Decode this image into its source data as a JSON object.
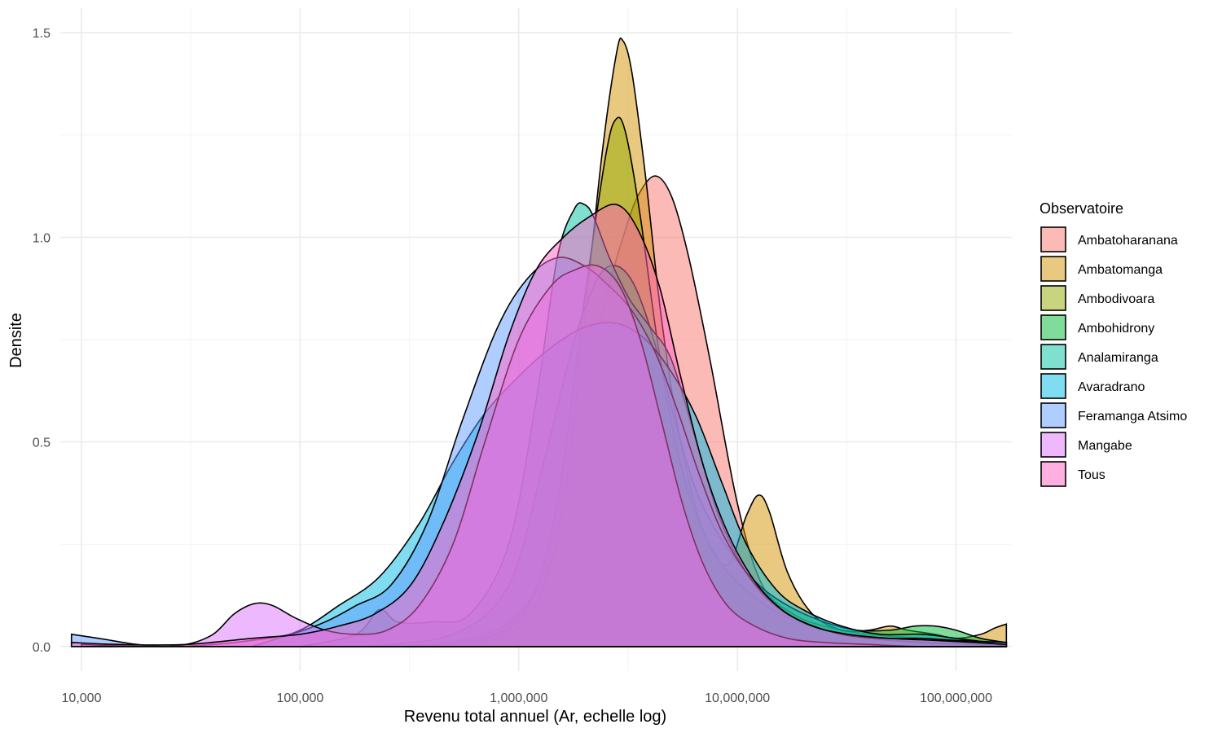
{
  "chart_data": {
    "type": "area",
    "title": "",
    "xlabel": "Revenu total annuel (Ar, echelle log)",
    "ylabel": "Densite",
    "x_scale": "log10",
    "xlim": [
      8000,
      180000000
    ],
    "ylim": [
      -0.06,
      1.56
    ],
    "x_ticks": [
      10000,
      100000,
      1000000,
      10000000,
      100000000
    ],
    "x_tick_labels": [
      "10,000",
      "100,000",
      "1,000,000",
      "10,000,000",
      "100,000,000"
    ],
    "y_ticks": [
      0,
      0.5,
      1,
      1.5
    ],
    "y_tick_labels": [
      "0.0",
      "0.5",
      "1.0",
      "1.5"
    ],
    "grid": true,
    "legend": {
      "title": "Observatoire",
      "position": "right"
    },
    "series": [
      {
        "name": "Ambatoharanana",
        "color": "#F8766D",
        "points": [
          [
            300000,
            0
          ],
          [
            600000,
            0.02
          ],
          [
            1000000,
            0.08
          ],
          [
            1500000,
            0.25
          ],
          [
            2000000,
            0.6
          ],
          [
            2500000,
            0.85
          ],
          [
            3000000,
            1.0
          ],
          [
            3500000,
            1.1
          ],
          [
            4200000,
            1.15
          ],
          [
            5000000,
            1.1
          ],
          [
            6000000,
            0.95
          ],
          [
            7500000,
            0.7
          ],
          [
            10000000,
            0.35
          ],
          [
            13000000,
            0.15
          ],
          [
            18000000,
            0.08
          ],
          [
            25000000,
            0.05
          ],
          [
            40000000,
            0.03
          ],
          [
            70000000,
            0.02
          ],
          [
            120000000,
            0.01
          ],
          [
            170000000,
            0
          ]
        ]
      },
      {
        "name": "Ambatomanga",
        "color": "#D39200",
        "points": [
          [
            400000,
            0
          ],
          [
            800000,
            0.02
          ],
          [
            1200000,
            0.1
          ],
          [
            1600000,
            0.35
          ],
          [
            2000000,
            0.8
          ],
          [
            2400000,
            1.2
          ],
          [
            2800000,
            1.45
          ],
          [
            3000000,
            1.48
          ],
          [
            3300000,
            1.4
          ],
          [
            3800000,
            1.15
          ],
          [
            4500000,
            0.8
          ],
          [
            5500000,
            0.5
          ],
          [
            7000000,
            0.28
          ],
          [
            9000000,
            0.2
          ],
          [
            11000000,
            0.32
          ],
          [
            12500000,
            0.37
          ],
          [
            14000000,
            0.33
          ],
          [
            17000000,
            0.18
          ],
          [
            22000000,
            0.08
          ],
          [
            30000000,
            0.04
          ],
          [
            40000000,
            0.04
          ],
          [
            50000000,
            0.05
          ],
          [
            60000000,
            0.04
          ],
          [
            80000000,
            0.03
          ],
          [
            100000000,
            0.02
          ],
          [
            130000000,
            0.03
          ],
          [
            150000000,
            0.045
          ],
          [
            170000000,
            0.055
          ]
        ]
      },
      {
        "name": "Ambodivoara",
        "color": "#93AA00",
        "points": [
          [
            300000,
            0
          ],
          [
            700000,
            0.02
          ],
          [
            1100000,
            0.1
          ],
          [
            1500000,
            0.35
          ],
          [
            2000000,
            0.85
          ],
          [
            2500000,
            1.2
          ],
          [
            2800000,
            1.29
          ],
          [
            3100000,
            1.25
          ],
          [
            3600000,
            1.05
          ],
          [
            4300000,
            0.75
          ],
          [
            5200000,
            0.5
          ],
          [
            6500000,
            0.32
          ],
          [
            8500000,
            0.2
          ],
          [
            12000000,
            0.12
          ],
          [
            17000000,
            0.07
          ],
          [
            25000000,
            0.04
          ],
          [
            40000000,
            0.02
          ],
          [
            70000000,
            0.01
          ],
          [
            120000000,
            0.005
          ],
          [
            170000000,
            0
          ]
        ]
      },
      {
        "name": "Ambohidrony",
        "color": "#00BA38",
        "points": [
          [
            200000,
            0
          ],
          [
            500000,
            0.03
          ],
          [
            900000,
            0.15
          ],
          [
            1300000,
            0.45
          ],
          [
            1800000,
            0.75
          ],
          [
            2300000,
            0.9
          ],
          [
            2800000,
            0.93
          ],
          [
            3400000,
            0.88
          ],
          [
            4200000,
            0.74
          ],
          [
            5200000,
            0.55
          ],
          [
            6500000,
            0.38
          ],
          [
            8500000,
            0.26
          ],
          [
            12000000,
            0.16
          ],
          [
            17000000,
            0.1
          ],
          [
            25000000,
            0.06
          ],
          [
            35000000,
            0.04
          ],
          [
            50000000,
            0.04
          ],
          [
            65000000,
            0.05
          ],
          [
            80000000,
            0.05
          ],
          [
            100000000,
            0.04
          ],
          [
            130000000,
            0.02
          ],
          [
            170000000,
            0.01
          ]
        ]
      },
      {
        "name": "Analamiranga",
        "color": "#00C19F",
        "points": [
          [
            100000,
            0
          ],
          [
            180000,
            0.03
          ],
          [
            230000,
            0.09
          ],
          [
            280000,
            0.06
          ],
          [
            400000,
            0.06
          ],
          [
            600000,
            0.08
          ],
          [
            900000,
            0.25
          ],
          [
            1200000,
            0.6
          ],
          [
            1500000,
            0.95
          ],
          [
            1800000,
            1.07
          ],
          [
            2000000,
            1.08
          ],
          [
            2200000,
            1.05
          ],
          [
            2600000,
            0.95
          ],
          [
            3200000,
            0.85
          ],
          [
            4000000,
            0.78
          ],
          [
            5000000,
            0.7
          ],
          [
            6500000,
            0.5
          ],
          [
            8500000,
            0.3
          ],
          [
            12000000,
            0.15
          ],
          [
            17000000,
            0.08
          ],
          [
            25000000,
            0.04
          ],
          [
            40000000,
            0.02
          ],
          [
            70000000,
            0.01
          ],
          [
            120000000,
            0.005
          ],
          [
            170000000,
            0
          ]
        ]
      },
      {
        "name": "Avaradrano",
        "color": "#00B9E3",
        "points": [
          [
            60000,
            0
          ],
          [
            100000,
            0.04
          ],
          [
            150000,
            0.1
          ],
          [
            230000,
            0.17
          ],
          [
            350000,
            0.3
          ],
          [
            500000,
            0.45
          ],
          [
            700000,
            0.57
          ],
          [
            1000000,
            0.66
          ],
          [
            1400000,
            0.73
          ],
          [
            2000000,
            0.78
          ],
          [
            2800000,
            0.79
          ],
          [
            3800000,
            0.75
          ],
          [
            5000000,
            0.67
          ],
          [
            6500000,
            0.56
          ],
          [
            8500000,
            0.4
          ],
          [
            11000000,
            0.25
          ],
          [
            15000000,
            0.14
          ],
          [
            20000000,
            0.09
          ],
          [
            30000000,
            0.05
          ],
          [
            45000000,
            0.03
          ],
          [
            70000000,
            0.03
          ],
          [
            100000000,
            0.02
          ],
          [
            140000000,
            0.01
          ],
          [
            170000000,
            0
          ]
        ]
      },
      {
        "name": "Feramanga Atsimo",
        "color": "#619CFF",
        "points": [
          [
            9000,
            0.03
          ],
          [
            12000,
            0.02
          ],
          [
            18000,
            0.005
          ],
          [
            25000,
            0
          ],
          [
            40000,
            0.005
          ],
          [
            60000,
            0.015
          ],
          [
            90000,
            0.03
          ],
          [
            130000,
            0.06
          ],
          [
            180000,
            0.1
          ],
          [
            260000,
            0.15
          ],
          [
            380000,
            0.3
          ],
          [
            550000,
            0.55
          ],
          [
            800000,
            0.78
          ],
          [
            1100000,
            0.9
          ],
          [
            1500000,
            0.95
          ],
          [
            2000000,
            0.93
          ],
          [
            2600000,
            0.88
          ],
          [
            3300000,
            0.82
          ],
          [
            4200000,
            0.72
          ],
          [
            5300000,
            0.58
          ],
          [
            6700000,
            0.42
          ],
          [
            8500000,
            0.28
          ],
          [
            11000000,
            0.18
          ],
          [
            15000000,
            0.1
          ],
          [
            20000000,
            0.06
          ],
          [
            30000000,
            0.03
          ],
          [
            45000000,
            0.02
          ],
          [
            70000000,
            0.02
          ],
          [
            100000000,
            0.015
          ],
          [
            170000000,
            0.01
          ]
        ]
      },
      {
        "name": "Mangabe",
        "color": "#DB72FB",
        "points": [
          [
            10000,
            0.005
          ],
          [
            20000,
            0
          ],
          [
            30000,
            0.005
          ],
          [
            40000,
            0.03
          ],
          [
            50000,
            0.08
          ],
          [
            62000,
            0.105
          ],
          [
            75000,
            0.1
          ],
          [
            95000,
            0.07
          ],
          [
            130000,
            0.04
          ],
          [
            180000,
            0.03
          ],
          [
            250000,
            0.04
          ],
          [
            350000,
            0.1
          ],
          [
            500000,
            0.25
          ],
          [
            700000,
            0.5
          ],
          [
            1000000,
            0.75
          ],
          [
            1400000,
            0.88
          ],
          [
            1800000,
            0.92
          ],
          [
            2300000,
            0.93
          ],
          [
            2900000,
            0.88
          ],
          [
            3600000,
            0.75
          ],
          [
            4500000,
            0.55
          ],
          [
            5600000,
            0.35
          ],
          [
            7000000,
            0.2
          ],
          [
            9000000,
            0.1
          ],
          [
            12000000,
            0.05
          ],
          [
            17000000,
            0.02
          ],
          [
            25000000,
            0.01
          ],
          [
            40000000,
            0.005
          ],
          [
            70000000,
            0
          ],
          [
            170000000,
            0
          ]
        ]
      },
      {
        "name": "Tous",
        "color": "#FF61C3",
        "points": [
          [
            9000,
            0.01
          ],
          [
            15000,
            0.005
          ],
          [
            30000,
            0.005
          ],
          [
            60000,
            0.02
          ],
          [
            100000,
            0.03
          ],
          [
            150000,
            0.05
          ],
          [
            220000,
            0.08
          ],
          [
            320000,
            0.15
          ],
          [
            450000,
            0.3
          ],
          [
            650000,
            0.52
          ],
          [
            900000,
            0.76
          ],
          [
            1200000,
            0.92
          ],
          [
            1600000,
            1.0
          ],
          [
            2100000,
            1.05
          ],
          [
            2800000,
            1.08
          ],
          [
            3500000,
            1.02
          ],
          [
            4400000,
            0.88
          ],
          [
            5500000,
            0.66
          ],
          [
            7000000,
            0.44
          ],
          [
            9000000,
            0.28
          ],
          [
            12000000,
            0.16
          ],
          [
            16000000,
            0.09
          ],
          [
            22000000,
            0.05
          ],
          [
            32000000,
            0.03
          ],
          [
            50000000,
            0.02
          ],
          [
            80000000,
            0.015
          ],
          [
            120000000,
            0.01
          ],
          [
            170000000,
            0.005
          ]
        ]
      }
    ]
  }
}
